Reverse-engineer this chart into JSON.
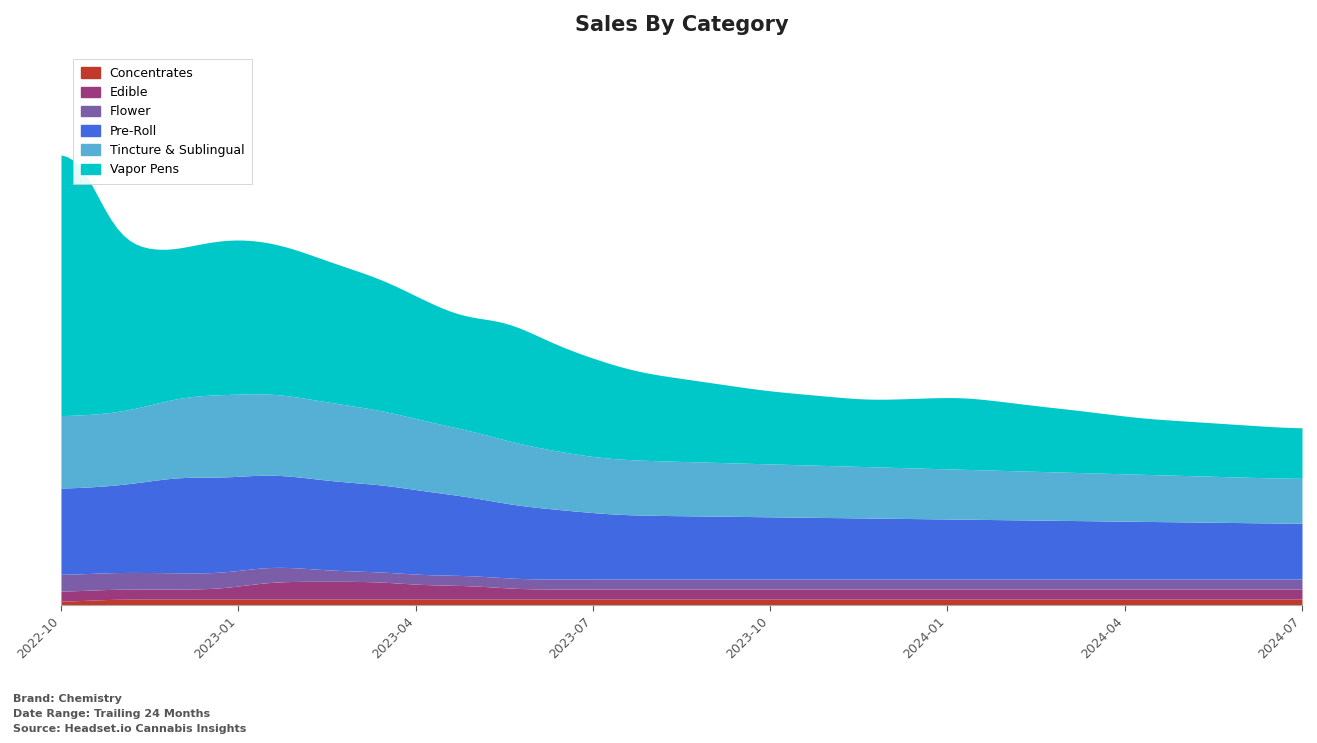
{
  "title": "Sales By Category",
  "categories": [
    "Concentrates",
    "Edible",
    "Flower",
    "Pre-Roll",
    "Tincture & Sublingual",
    "Vapor Pens"
  ],
  "colors": [
    "#c0392b",
    "#9b3a7d",
    "#7b5ea7",
    "#4169e1",
    "#56afd4",
    "#00c8c8"
  ],
  "x_labels": [
    "2022-10",
    "2023-01",
    "2023-04",
    "2023-07",
    "2023-10",
    "2024-01",
    "2024-04",
    "2024-07"
  ],
  "brand": "Chemistry",
  "date_range": "Trailing 24 Months",
  "source": "Headset.io Cannabis Insights",
  "n_points": 200,
  "background_color": "#ffffff",
  "title_fontsize": 15,
  "footnote_fontsize": 8
}
